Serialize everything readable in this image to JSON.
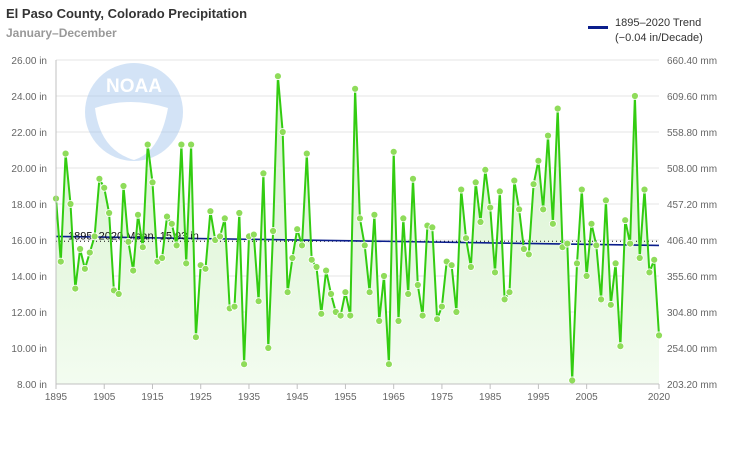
{
  "header": {
    "title": "El Paso County, Colorado Precipitation",
    "subtitle": "January–December"
  },
  "legend": {
    "label_line1": "1895–2020 Trend",
    "label_line2": "(−0.04 in/Decade)",
    "color": "#0b1e8c"
  },
  "logo": {
    "text": "NOAA"
  },
  "colors": {
    "series_line": "#33cc11",
    "series_marker": "#8fdc5a",
    "area_top": "#d4f2ca",
    "area_bottom": "#f3fcf0",
    "trend_line": "#0b1e8c",
    "mean_line": "#111111",
    "grid": "#e6e6e6",
    "axis_text": "#666666"
  },
  "chart_data": {
    "type": "line",
    "title": "El Paso County, Colorado Precipitation",
    "subtitle": "January–December",
    "xlabel": "",
    "ylabel": "",
    "xlim": [
      1895,
      2020
    ],
    "ylim": [
      8,
      26
    ],
    "y_ticks": [
      8,
      10,
      12,
      14,
      16,
      18,
      20,
      22,
      24,
      26
    ],
    "y_tick_labels": [
      "8.00 in",
      "10.00 in",
      "12.00 in",
      "14.00 in",
      "16.00 in",
      "18.00 in",
      "20.00 in",
      "22.00 in",
      "24.00 in",
      "26.00 in"
    ],
    "y2_tick_labels": [
      "203.20 mm",
      "254.00 mm",
      "304.80 mm",
      "355.60 mm",
      "406.40 mm",
      "457.20 mm",
      "508.00 mm",
      "558.80 mm",
      "609.60 mm",
      "660.40 mm"
    ],
    "x_ticks": [
      1895,
      1905,
      1915,
      1925,
      1935,
      1945,
      1955,
      1965,
      1975,
      1985,
      1995,
      2005,
      2020
    ],
    "x_tick_labels": [
      "1895",
      "1905",
      "1915",
      "1925",
      "1935",
      "1945",
      "1955",
      "1965",
      "1975",
      "1985",
      "1995",
      "2005",
      "2020"
    ],
    "grid": true,
    "legend_position": "top-right",
    "series": [
      {
        "name": "",
        "x_start": 1895,
        "values": [
          18.3,
          14.8,
          20.8,
          18.0,
          13.3,
          15.5,
          14.4,
          15.3,
          16.2,
          19.4,
          18.9,
          17.5,
          13.2,
          13.0,
          19.0,
          15.9,
          14.3,
          17.4,
          15.6,
          21.3,
          19.2,
          14.8,
          15.0,
          17.3,
          16.9,
          15.7,
          21.3,
          14.7,
          21.3,
          10.6,
          14.6,
          14.4,
          17.6,
          16.0,
          16.2,
          17.2,
          12.2,
          12.3,
          17.5,
          9.1,
          16.2,
          16.3,
          12.6,
          19.7,
          10.0,
          16.5,
          25.1,
          22.0,
          13.1,
          15.0,
          16.6,
          15.7,
          20.8,
          14.9,
          14.5,
          11.9,
          14.3,
          13.0,
          12.0,
          11.8,
          13.1,
          11.8,
          24.4,
          17.2,
          15.7,
          13.1,
          17.4,
          11.5,
          14.0,
          9.1,
          20.9,
          11.5,
          17.2,
          13.0,
          19.4,
          13.5,
          11.8,
          16.8,
          16.7,
          11.6,
          12.3,
          14.8,
          14.6,
          12.0,
          18.8,
          16.1,
          14.5,
          19.2,
          17.0,
          19.9,
          17.8,
          14.2,
          18.7,
          12.7,
          13.1,
          19.3,
          17.7,
          15.5,
          15.2,
          19.1,
          20.4,
          17.7,
          21.8,
          16.9,
          23.3,
          15.6,
          15.8,
          8.2,
          14.7,
          18.8,
          14.0,
          16.9,
          15.7,
          12.7,
          18.2,
          12.4,
          14.7,
          10.1,
          17.1,
          15.8,
          24.0,
          15.0,
          18.8,
          14.2,
          14.9,
          10.7
        ]
      }
    ],
    "mean": {
      "label": "1895–2020 Mean: 15.93 in",
      "value": 15.93
    },
    "trend": {
      "name": "1895–2020 Trend",
      "detail": "(−0.04 in/Decade)",
      "start": 16.2,
      "end": 15.7
    }
  }
}
